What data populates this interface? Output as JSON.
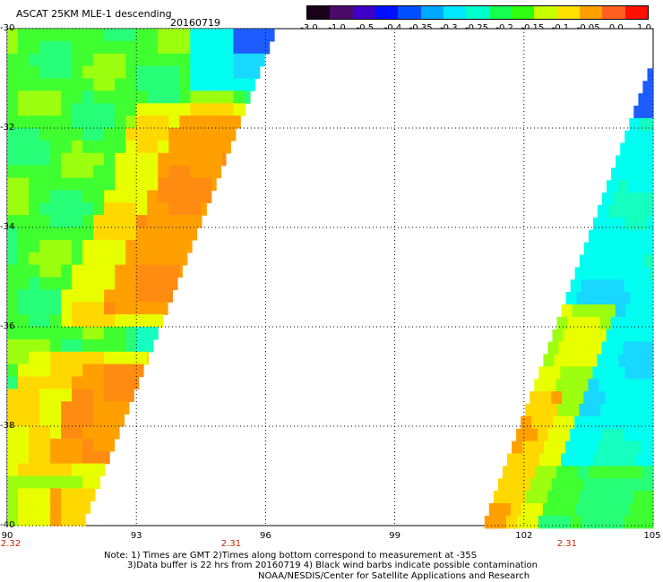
{
  "header": {
    "title": "ASCAT 25KM MLE-1 descending",
    "date": "20160719"
  },
  "colorbar": {
    "labels": [
      "-3.0",
      "-1.0",
      "-0.5",
      "-0.4",
      "-0.35",
      "-0.3",
      "-0.25",
      "-0.2",
      "-0.15",
      "-0.1",
      "-0.05",
      "0.0",
      "1.0"
    ],
    "colors": [
      "#1a0018",
      "#4a0a6a",
      "#3c00c8",
      "#0010ff",
      "#0050ff",
      "#00a8ff",
      "#00e8ff",
      "#00ffcc",
      "#14ff50",
      "#30ff10",
      "#c8ff00",
      "#ffe000",
      "#ffa000",
      "#ff6020",
      "#ff1000"
    ]
  },
  "axes": {
    "y_ticks": [
      "-30",
      "-32",
      "-34",
      "-36",
      "-38",
      "-40"
    ],
    "x_ticks": [
      "90",
      "93",
      "96",
      "99",
      "102",
      "105"
    ],
    "time_labels": [
      {
        "lon": "90",
        "text": "2.32"
      },
      {
        "lon": "95.2",
        "text": "2.31"
      },
      {
        "lon": "103",
        "text": "2.31"
      }
    ]
  },
  "notes": {
    "line1": "Note: 1) Times are GMT 2)Times along bottom correspond to measurement at -35S",
    "line2": "3)Data buffer is 22 hrs from 20160719 4) Black wind barbs indicate possible contamination",
    "line3": "NOAA/NESDIS/Center for Satellite Applications and Research"
  }
}
